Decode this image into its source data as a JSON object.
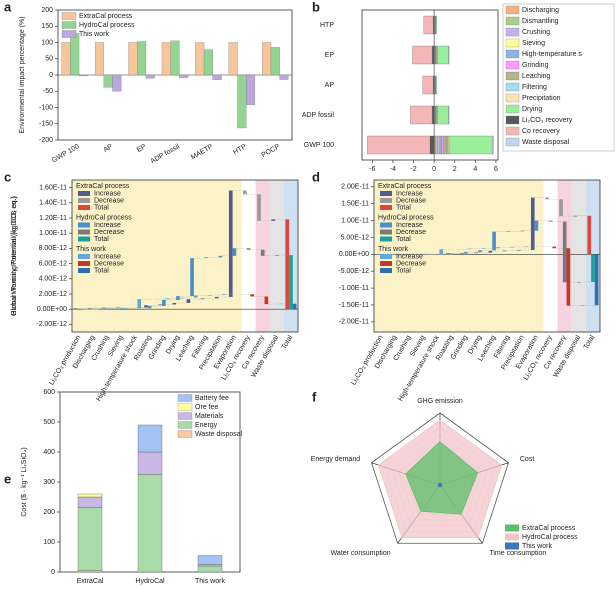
{
  "chart_data": [
    {
      "type": "bar",
      "label": "a",
      "ylabel": "Environmental impact percentage (%)",
      "categories": [
        "GWP 100",
        "AP",
        "EP",
        "ADP fossil",
        "MAETP",
        "HTP",
        "POCP"
      ],
      "series": [
        {
          "name": "ExtraCal process",
          "color": "#f5c59b",
          "values": [
            100,
            100,
            100,
            100,
            100,
            100,
            100
          ]
        },
        {
          "name": "HydroCal process",
          "color": "#93d493",
          "values": [
            128,
            -38,
            103,
            105,
            78,
            -163,
            85
          ]
        },
        {
          "name": "This work",
          "color": "#bba7db",
          "values": [
            -3,
            -50,
            -10,
            -8,
            -15,
            -92,
            -14
          ]
        }
      ],
      "ylim": [
        -200,
        200
      ],
      "yticks": [
        -200,
        -150,
        -100,
        -50,
        0,
        50,
        100,
        150,
        200
      ]
    },
    {
      "type": "stacked_barh",
      "label": "b",
      "categories": [
        "HTP",
        "EP",
        "AP",
        "ADP fossil",
        "GWP 100"
      ],
      "series": [
        {
          "name": "Discharging",
          "color": "#f4b183",
          "values": [
            0,
            0,
            0,
            0,
            0.05
          ]
        },
        {
          "name": "Dismantling",
          "color": "#a9d18e",
          "values": [
            0,
            0,
            0,
            0,
            0.1
          ]
        },
        {
          "name": "Crushing",
          "color": "#c5b4e3",
          "values": [
            0.05,
            0.05,
            0.05,
            0.05,
            0.2
          ]
        },
        {
          "name": "Sieving",
          "color": "#ffff99",
          "values": [
            0,
            0,
            0,
            0,
            0.1
          ]
        },
        {
          "name": "High-temperature s",
          "color": "#8db4e2",
          "values": [
            0.05,
            0.05,
            0.05,
            0.05,
            0.3
          ]
        },
        {
          "name": "Grinding",
          "color": "#ff99ff",
          "values": [
            0,
            0.05,
            0,
            0.05,
            0.2
          ]
        },
        {
          "name": "Leaching",
          "color": "#b4b48c",
          "values": [
            0.05,
            0.1,
            0.05,
            0.1,
            0.3
          ]
        },
        {
          "name": "Filtering",
          "color": "#a6dcef",
          "values": [
            0,
            0,
            0,
            0,
            0.1
          ]
        },
        {
          "name": "Precipitation",
          "color": "#fce4b6",
          "values": [
            0,
            0.05,
            0,
            0.05,
            0.1
          ]
        },
        {
          "name": "Drying",
          "color": "#99ee99",
          "values": [
            0.1,
            1.1,
            0.1,
            1.1,
            4.2
          ]
        },
        {
          "name": "Li₂CO₃ recovery",
          "color": "#595959",
          "values": [
            -0.1,
            -0.2,
            -0.1,
            -0.2,
            -0.4
          ]
        },
        {
          "name": "Co recovery",
          "color": "#f4b6b6",
          "values": [
            -0.9,
            -1.9,
            -1.0,
            -2.1,
            -6.1
          ]
        },
        {
          "name": "Waste disposal",
          "color": "#bdd7ee",
          "values": [
            0,
            0.05,
            0,
            0.05,
            0.1
          ]
        }
      ],
      "xlim": [
        -7,
        6.2
      ],
      "xticks": [
        -6,
        -4,
        -2,
        0,
        2,
        4,
        6
      ]
    },
    {
      "type": "waterfall",
      "label": "c",
      "ylabel": "Global Warming Potential (kg CO₂ eq.)",
      "categories": [
        "Li₂CO₃ production",
        "Discharging",
        "Crushing",
        "Sieving",
        "High-temperature shock",
        "Roasting",
        "Grinding",
        "Drying",
        "Leaching",
        "Filtering",
        "Precipitation",
        "Evaporation",
        "Li₂CO₃ recovery",
        "Co recovery",
        "Waste disposal"
      ],
      "total_label": "Total",
      "legend_items": [
        "Increase",
        "Decrease",
        "Total"
      ],
      "series": [
        {
          "name": "ExtraCal process",
          "colors": [
            "#55598f",
            "#9a9a9a",
            "#e0453a"
          ],
          "values": [
            1e-13,
            5e-14,
            5e-14,
            2e-14,
            0,
            3e-13,
            1e-13,
            2e-13,
            5e-13,
            1e-13,
            2e-13,
            1.4e-11,
            -5e-13,
            -3.5e-12,
            2e-13
          ],
          "total": 1.182e-11
        },
        {
          "name": "HydroCal process",
          "colors": [
            "#4a8fc9",
            "#7a7a7a",
            "#17a398"
          ],
          "values": [
            0,
            5e-14,
            5e-14,
            2e-14,
            0,
            3e-13,
            8e-13,
            5e-13,
            5e-12,
            1e-13,
            2e-13,
            1e-12,
            -2e-13,
            -8e-13,
            1e-13
          ],
          "total": 7.12e-12
        },
        {
          "name": "This work",
          "colors": [
            "#5fa8d8",
            "#c0392b",
            "#2f6fb0"
          ],
          "values": [
            0,
            5e-14,
            5e-14,
            2e-14,
            1.2e-12,
            0,
            1e-13,
            1e-13,
            3e-13,
            5e-14,
            1e-13,
            0,
            -3e-13,
            -1e-12,
            5e-14
          ],
          "total": 7.2e-13
        }
      ],
      "ylim": [
        -3e-12,
        1.7e-11
      ],
      "yticks": [
        {
          "value": -2e-12,
          "label": "-2.00E-12"
        },
        {
          "value": 0,
          "label": "0.00E+00"
        },
        {
          "value": 2e-12,
          "label": "2.00E-12"
        },
        {
          "value": 4e-12,
          "label": "4.00E-12"
        },
        {
          "value": 6e-12,
          "label": "6.00E-12"
        },
        {
          "value": 8e-12,
          "label": "8.00E-12"
        },
        {
          "value": 1e-11,
          "label": "1.00E-11"
        },
        {
          "value": 1.2e-11,
          "label": "1.20E-11"
        },
        {
          "value": 1.4e-11,
          "label": "1.40E-11"
        },
        {
          "value": 1.6e-11,
          "label": "1.60E-11"
        }
      ]
    },
    {
      "type": "waterfall",
      "label": "d",
      "ylabel": "Human Toxicity Potential (kg DCB eq.)",
      "categories": [
        "Li₂CO₃ production",
        "Discharging",
        "Crushing",
        "Sieving",
        "High-temperature shock",
        "Roasting",
        "Grinding",
        "Drying",
        "Leaching",
        "Filtering",
        "Precipitation",
        "Evaporation",
        "Li₂CO₃ recovery",
        "Co recovery",
        "Waste disposal"
      ],
      "total_label": "Total",
      "legend_items": [
        "Increase",
        "Decrease",
        "Total"
      ],
      "series": [
        {
          "name": "ExtraCal process",
          "colors": [
            "#55598f",
            "#9a9a9a",
            "#e0453a"
          ],
          "values": [
            1e-13,
            0,
            0,
            0,
            0,
            2e-13,
            1e-13,
            1e-13,
            5e-13,
            1e-13,
            2e-13,
            1.55e-11,
            -5e-13,
            -5e-12,
            1e-13
          ],
          "total": 1.14e-11
        },
        {
          "name": "HydroCal process",
          "colors": [
            "#4a8fc9",
            "#7a7a7a",
            "#17a398"
          ],
          "values": [
            0,
            0,
            0,
            0,
            0,
            2e-13,
            5e-13,
            5e-13,
            5.5e-12,
            1e-13,
            2e-13,
            3e-12,
            -3e-13,
            -1.8e-11,
            1e-13
          ],
          "total": -8.2e-12
        },
        {
          "name": "This work",
          "colors": [
            "#5fa8d8",
            "#c0392b",
            "#2f6fb0"
          ],
          "values": [
            0,
            0,
            0,
            0,
            1.5e-12,
            0,
            2e-13,
            1e-13,
            3e-13,
            1e-13,
            1e-13,
            0,
            -5e-13,
            -1.7e-11,
            1e-13
          ],
          "total": -1.51e-11
        }
      ],
      "ylim": [
        -2.3e-11,
        2.2e-11
      ],
      "yticks": [
        {
          "value": -2e-11,
          "label": "-2.00E-11"
        },
        {
          "value": -1.5e-11,
          "label": "-1.50E-11"
        },
        {
          "value": -1e-11,
          "label": "-1.00E-11"
        },
        {
          "value": -5e-12,
          "label": "-5.00E-12"
        },
        {
          "value": 0,
          "label": "0.00E+00"
        },
        {
          "value": 5e-12,
          "label": "5.00E-12"
        },
        {
          "value": 1e-11,
          "label": "1.00E-11"
        },
        {
          "value": 1.5e-11,
          "label": "1.50E-11"
        },
        {
          "value": 2e-11,
          "label": "2.00E-11"
        }
      ]
    },
    {
      "type": "stacked_bar",
      "label": "e",
      "ylabel": "Cost ($ · kg⁻¹ Li₄SiO₄)",
      "categories": [
        "ExtraCal",
        "HydroCal",
        "This work"
      ],
      "series": [
        {
          "name": "Waste disposal",
          "color": "#f8c9a0",
          "values": [
            5,
            0,
            0
          ]
        },
        {
          "name": "Energy",
          "color": "#a8dba8",
          "values": [
            210,
            325,
            20
          ]
        },
        {
          "name": "Materials",
          "color": "#c9b7e6",
          "values": [
            35,
            75,
            5
          ]
        },
        {
          "name": "Ore fee",
          "color": "#ffffa0",
          "values": [
            10,
            0,
            0
          ]
        },
        {
          "name": "Battery fee",
          "color": "#a4c2f4",
          "values": [
            0,
            90,
            30
          ]
        }
      ],
      "ylim": [
        0,
        600
      ],
      "yticks": [
        0,
        100,
        200,
        300,
        400,
        500,
        600
      ]
    },
    {
      "type": "radar",
      "label": "f",
      "axes": [
        "GHG emission",
        "Cost",
        "Time consumption",
        "Water consumption",
        "Energy demand"
      ],
      "series": [
        {
          "name": "HydroCal process",
          "color": "#f2c4c8",
          "values": [
            0.9,
            0.9,
            0.9,
            0.9,
            0.9
          ]
        },
        {
          "name": "ExtraCal process",
          "color": "#5cbf6a",
          "values": [
            0.6,
            0.55,
            0.5,
            0.45,
            0.5
          ]
        },
        {
          "name": "This work",
          "color": "#3a78c0",
          "values": [
            0.03,
            0.03,
            0.03,
            0.03,
            0.03
          ]
        }
      ],
      "rlim": [
        0,
        1
      ]
    }
  ]
}
